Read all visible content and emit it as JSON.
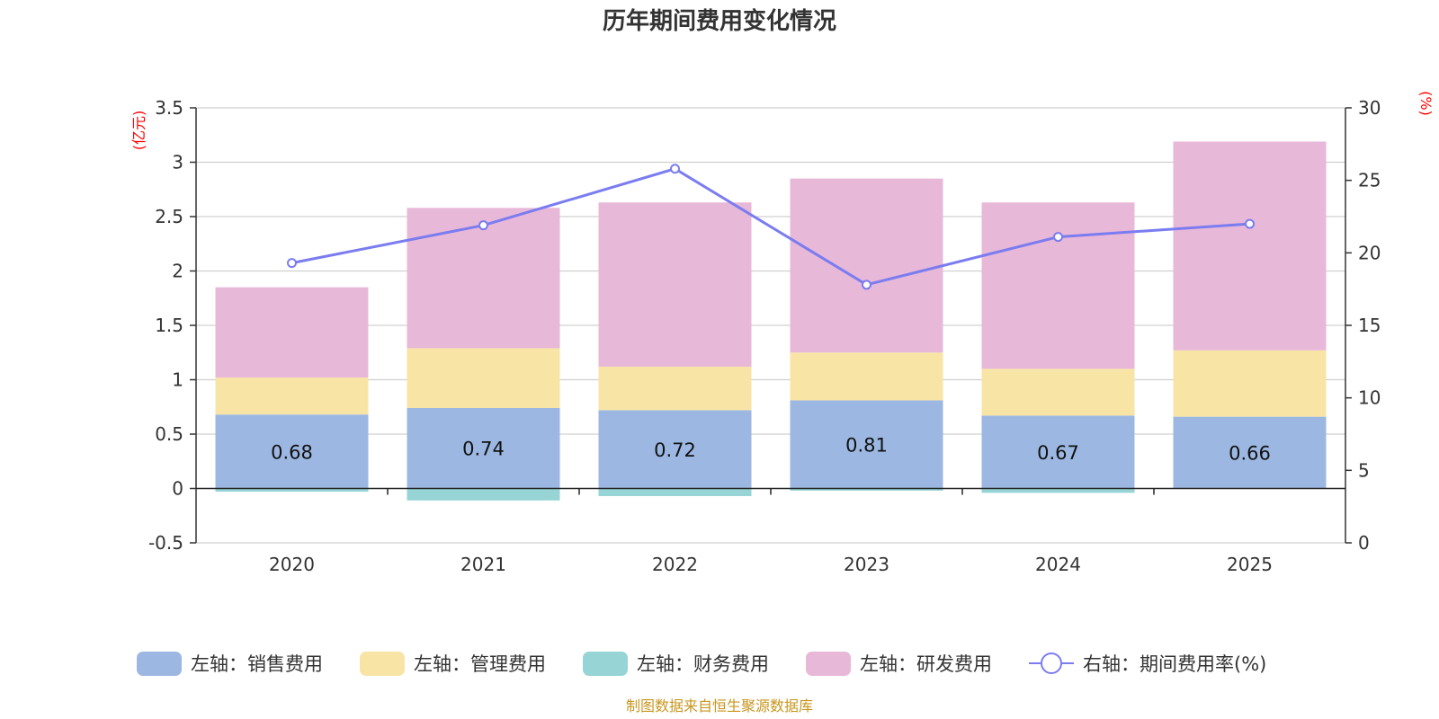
{
  "chart_data": {
    "type": "bar",
    "title": "历年期间费用变化情况",
    "categories": [
      "2020",
      "2021",
      "2022",
      "2023",
      "2024",
      "2025"
    ],
    "left_axis": {
      "unit": "(亿元)",
      "ylim": [
        -0.5,
        3.5
      ],
      "ticks": [
        "-0.5",
        "0",
        "0.5",
        "1",
        "1.5",
        "2",
        "2.5",
        "3",
        "3.5"
      ]
    },
    "right_axis": {
      "unit": "(%)",
      "ylim": [
        0,
        30
      ],
      "ticks": [
        "0",
        "5",
        "10",
        "15",
        "20",
        "25",
        "30"
      ]
    },
    "series": [
      {
        "name": "左轴：销售费用",
        "type": "bar",
        "axis": "left",
        "color": "#9cb8e2",
        "values": [
          0.68,
          0.74,
          0.72,
          0.81,
          0.67,
          0.66
        ],
        "labels": [
          "0.68",
          "0.74",
          "0.72",
          "0.81",
          "0.67",
          "0.66"
        ]
      },
      {
        "name": "左轴：管理费用",
        "type": "bar",
        "axis": "left",
        "color": "#f8e5a6",
        "values": [
          0.34,
          0.55,
          0.4,
          0.44,
          0.43,
          0.61
        ]
      },
      {
        "name": "左轴：财务费用",
        "type": "bar",
        "axis": "left",
        "color": "#96d4d6",
        "values": [
          -0.03,
          -0.11,
          -0.07,
          -0.02,
          -0.04,
          0.0
        ]
      },
      {
        "name": "左轴：研发费用",
        "type": "bar",
        "axis": "left",
        "color": "#e8b8d8",
        "values": [
          0.83,
          1.29,
          1.51,
          1.6,
          1.53,
          1.92
        ]
      },
      {
        "name": "右轴：期间费用率(%)",
        "type": "line",
        "axis": "right",
        "color": "#7a7cf0",
        "values": [
          19.3,
          21.9,
          25.8,
          17.8,
          21.1,
          22.0
        ]
      }
    ],
    "source": "制图数据来自恒生聚源数据库"
  }
}
